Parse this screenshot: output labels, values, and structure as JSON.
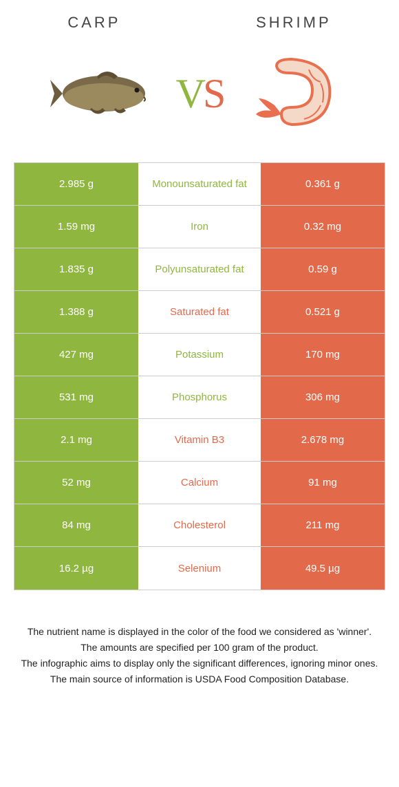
{
  "header": {
    "left_label": "CARP",
    "right_label": "SHRIMP",
    "vs_v": "V",
    "vs_s": "S"
  },
  "colors": {
    "left": "#8fb63f",
    "right": "#e2694a",
    "border": "#cccccc",
    "background": "#ffffff"
  },
  "rows": [
    {
      "left": "2.985 g",
      "label": "Monounsaturated fat",
      "right": "0.361 g",
      "winner": "left"
    },
    {
      "left": "1.59 mg",
      "label": "Iron",
      "right": "0.32 mg",
      "winner": "left"
    },
    {
      "left": "1.835 g",
      "label": "Polyunsaturated fat",
      "right": "0.59 g",
      "winner": "left"
    },
    {
      "left": "1.388 g",
      "label": "Saturated fat",
      "right": "0.521 g",
      "winner": "right"
    },
    {
      "left": "427 mg",
      "label": "Potassium",
      "right": "170 mg",
      "winner": "left"
    },
    {
      "left": "531 mg",
      "label": "Phosphorus",
      "right": "306 mg",
      "winner": "left"
    },
    {
      "left": "2.1 mg",
      "label": "Vitamin B3",
      "right": "2.678 mg",
      "winner": "right"
    },
    {
      "left": "52 mg",
      "label": "Calcium",
      "right": "91 mg",
      "winner": "right"
    },
    {
      "left": "84 mg",
      "label": "Cholesterol",
      "right": "211 mg",
      "winner": "right"
    },
    {
      "left": "16.2 µg",
      "label": "Selenium",
      "right": "49.5 µg",
      "winner": "right"
    }
  ],
  "footnotes": {
    "line1": "The nutrient name is displayed in the color of the food we considered as 'winner'.",
    "line2": "The amounts are specified per 100 gram of the product.",
    "line3": "The infographic aims to display only the significant differences, ignoring minor ones.",
    "line4": "The main source of information is USDA Food Composition Database."
  }
}
